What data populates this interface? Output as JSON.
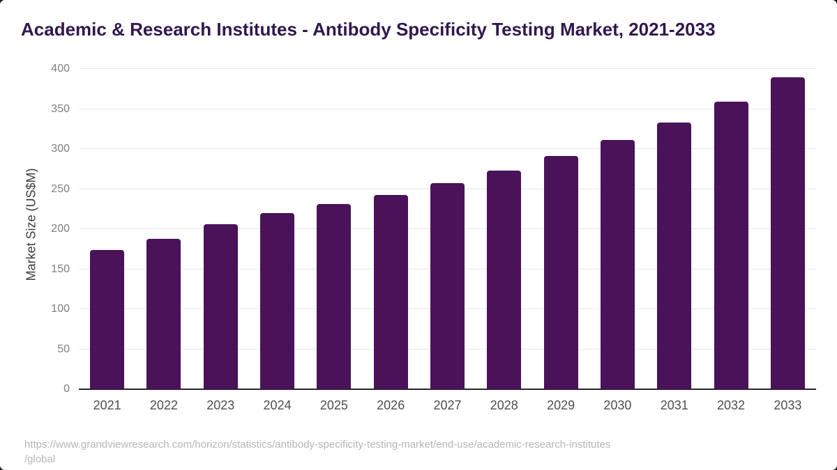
{
  "title": "Academic & Research Institutes - Antibody Specificity Testing Market, 2021-2033",
  "source": {
    "line1": "https://www.grandviewresearch.com/horizon/statistics/antibody-specificity-testing-market/end-use/academic-research-institutes",
    "line2": "/global"
  },
  "colors": {
    "bar": "#4a1259",
    "title_text": "#32174d",
    "axis_line": "#262626",
    "gridline": "#e9e9e9",
    "y_tick_text": "#808080",
    "x_tick_text": "#4d4d4d",
    "y_axis_title_text": "#3d3d3d",
    "source_text": "#b6b6b6",
    "card_background": "#ffffff",
    "page_background": "#161616"
  },
  "chart_data": {
    "type": "bar",
    "categories": [
      "2021",
      "2022",
      "2023",
      "2024",
      "2025",
      "2026",
      "2027",
      "2028",
      "2029",
      "2030",
      "2031",
      "2032",
      "2033"
    ],
    "values": [
      174,
      188,
      206,
      220,
      231,
      243,
      257,
      273,
      291,
      311,
      333,
      359,
      390
    ],
    "title": "Academic & Research Institutes - Antibody Specificity Testing Market, 2021-2033",
    "xlabel": "",
    "ylabel": "Market Size (US$M)",
    "ylim": [
      0,
      400
    ],
    "yticks": [
      0,
      50,
      100,
      150,
      200,
      250,
      300,
      350,
      400
    ],
    "grid": "horizontal-only",
    "legend": "none",
    "bar_color": "#4a1259"
  }
}
